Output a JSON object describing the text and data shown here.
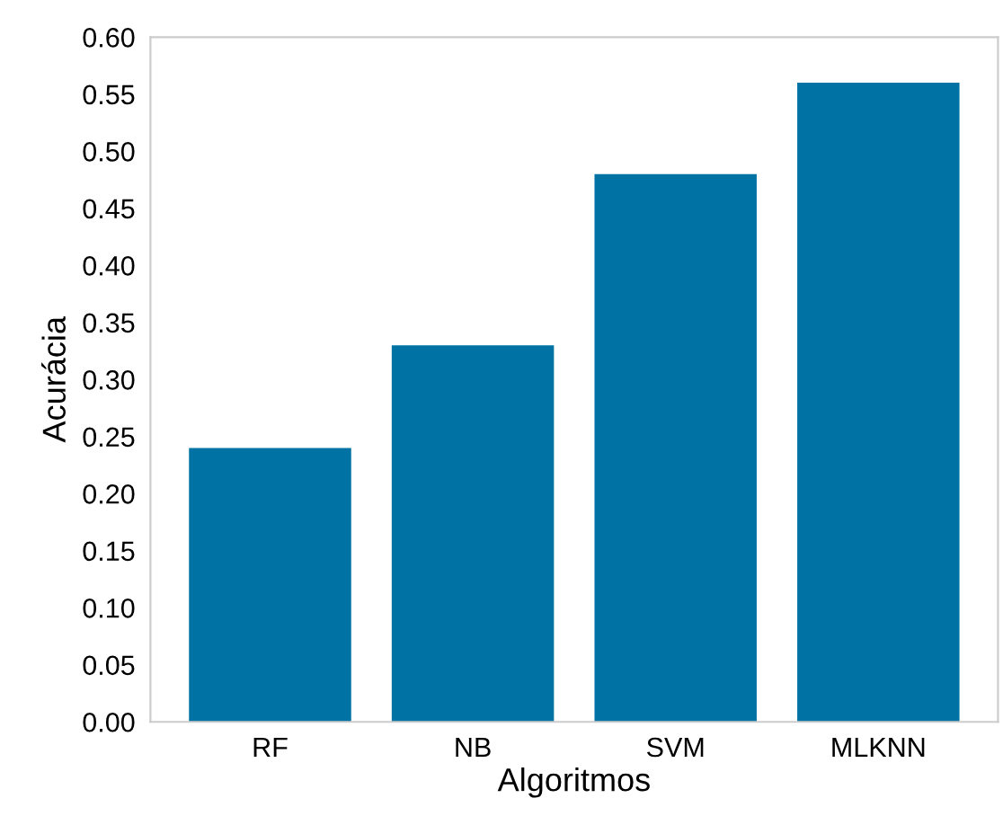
{
  "chart_data": {
    "type": "bar",
    "xlabel": "Algoritmos",
    "ylabel": "Acurácia",
    "categories": [
      "RF",
      "NB",
      "SVM",
      "MLKNN"
    ],
    "values": [
      0.24,
      0.33,
      0.48,
      0.56
    ],
    "color": "#0072a3",
    "ylim": [
      0,
      0.6
    ],
    "yticks": [
      {
        "value": 0,
        "label": "0.00"
      },
      {
        "value": 0.05,
        "label": "0.05"
      },
      {
        "value": 0.1,
        "label": "0.10"
      },
      {
        "value": 0.15,
        "label": "0.15"
      },
      {
        "value": 0.2,
        "label": "0.20"
      },
      {
        "value": 0.25,
        "label": "0.25"
      },
      {
        "value": 0.3,
        "label": "0.30"
      },
      {
        "value": 0.35,
        "label": "0.35"
      },
      {
        "value": 0.4,
        "label": "0.40"
      },
      {
        "value": 0.45,
        "label": "0.45"
      },
      {
        "value": 0.5,
        "label": "0.50"
      },
      {
        "value": 0.55,
        "label": "0.55"
      },
      {
        "value": 0.6,
        "label": "0.60"
      }
    ],
    "grid": false,
    "legend": false
  }
}
